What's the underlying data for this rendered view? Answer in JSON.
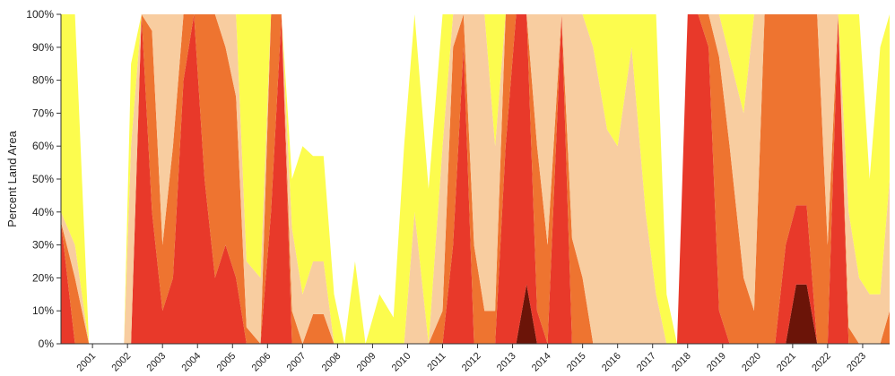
{
  "chart_data": {
    "type": "stacked_area",
    "y_label": "Percent Land Area",
    "x": [
      2000.1,
      2000.5,
      2000.9,
      2001.9,
      2002.1,
      2002.4,
      2002.7,
      2003.0,
      2003.3,
      2003.6,
      2003.9,
      2004.2,
      2004.5,
      2004.8,
      2005.1,
      2005.4,
      2005.8,
      2006.1,
      2006.4,
      2006.7,
      2007.0,
      2007.3,
      2007.6,
      2007.9,
      2008.2,
      2008.5,
      2008.8,
      2009.2,
      2009.6,
      2009.9,
      2010.2,
      2010.6,
      2011.0,
      2011.3,
      2011.6,
      2011.9,
      2012.2,
      2012.5,
      2012.8,
      2013.1,
      2013.4,
      2013.7,
      2014.0,
      2014.4,
      2014.7,
      2015.0,
      2015.3,
      2015.7,
      2016.0,
      2016.4,
      2016.8,
      2017.1,
      2017.4,
      2017.7,
      2018.0,
      2018.3,
      2018.6,
      2018.9,
      2019.2,
      2019.6,
      2019.9,
      2020.2,
      2020.5,
      2020.8,
      2021.1,
      2021.4,
      2021.7,
      2022.0,
      2022.3,
      2022.6,
      2022.9,
      2023.2,
      2023.5,
      2023.77
    ],
    "series": [
      {
        "color": "#6b1408",
        "values": [
          0,
          0,
          0,
          0,
          0,
          0,
          0,
          0,
          0,
          0,
          0,
          0,
          0,
          0,
          0,
          0,
          0,
          0,
          0,
          0,
          0,
          0,
          0,
          0,
          0,
          0,
          0,
          0,
          0,
          0,
          0,
          0,
          0,
          0,
          0,
          0,
          0,
          0,
          0,
          0,
          18,
          0,
          0,
          0,
          0,
          0,
          0,
          0,
          0,
          0,
          0,
          0,
          0,
          0,
          0,
          0,
          0,
          0,
          0,
          0,
          0,
          0,
          0,
          0,
          18,
          18,
          0,
          0,
          0,
          0,
          0,
          0,
          0,
          0
        ]
      },
      {
        "color": "#e8392a",
        "values": [
          37,
          0,
          0,
          0,
          0,
          100,
          40,
          10,
          20,
          80,
          100,
          50,
          20,
          30,
          20,
          0,
          0,
          40,
          100,
          0,
          0,
          0,
          0,
          0,
          0,
          0,
          0,
          0,
          0,
          0,
          0,
          0,
          0,
          30,
          90,
          0,
          0,
          0,
          60,
          100,
          82,
          10,
          0,
          100,
          0,
          0,
          0,
          0,
          0,
          0,
          0,
          0,
          0,
          0,
          100,
          100,
          90,
          10,
          0,
          0,
          0,
          0,
          0,
          30,
          24,
          24,
          0,
          0,
          100,
          0,
          0,
          0,
          0,
          0
        ]
      },
      {
        "color": "#ee7430",
        "values": [
          0,
          20,
          0,
          0,
          0,
          0,
          55,
          20,
          40,
          20,
          0,
          50,
          80,
          60,
          55,
          5,
          0,
          60,
          0,
          10,
          0,
          9,
          9,
          0,
          0,
          0,
          0,
          0,
          0,
          0,
          0,
          0,
          10,
          60,
          10,
          30,
          10,
          10,
          40,
          0,
          0,
          50,
          30,
          0,
          32,
          20,
          0,
          0,
          0,
          0,
          0,
          0,
          0,
          0,
          0,
          0,
          10,
          77,
          60,
          20,
          10,
          100,
          100,
          70,
          58,
          58,
          100,
          30,
          0,
          5,
          0,
          0,
          0,
          10
        ]
      },
      {
        "color": "#f8cda0",
        "values": [
          3,
          10,
          0,
          0,
          60,
          0,
          5,
          70,
          40,
          0,
          0,
          0,
          0,
          10,
          25,
          20,
          20,
          0,
          0,
          25,
          15,
          16,
          16,
          0,
          0,
          0,
          0,
          0,
          0,
          0,
          40,
          0,
          50,
          10,
          0,
          70,
          90,
          50,
          0,
          0,
          0,
          40,
          70,
          0,
          68,
          80,
          90,
          65,
          60,
          90,
          40,
          15,
          0,
          0,
          0,
          0,
          0,
          13,
          27,
          50,
          90,
          0,
          0,
          0,
          0,
          0,
          0,
          70,
          0,
          35,
          20,
          15,
          15,
          40
        ]
      },
      {
        "color": "#fcfc4e",
        "values": [
          60,
          70,
          0,
          0,
          25,
          0,
          0,
          0,
          0,
          0,
          0,
          0,
          0,
          0,
          0,
          75,
          80,
          0,
          0,
          15,
          45,
          32,
          32,
          15,
          0,
          25,
          0,
          15,
          8,
          60,
          60,
          47,
          40,
          0,
          0,
          0,
          0,
          40,
          0,
          0,
          0,
          0,
          0,
          0,
          0,
          0,
          10,
          35,
          40,
          10,
          60,
          85,
          15,
          0,
          0,
          0,
          0,
          0,
          13,
          30,
          0,
          0,
          0,
          0,
          0,
          0,
          0,
          0,
          0,
          60,
          80,
          35,
          75,
          50
        ]
      }
    ],
    "xlim": [
      2000.1,
      2023.77
    ],
    "xticks": [
      2001,
      2002,
      2003,
      2004,
      2005,
      2006,
      2007,
      2008,
      2009,
      2010,
      2011,
      2012,
      2013,
      2014,
      2015,
      2016,
      2017,
      2018,
      2019,
      2020,
      2021,
      2022,
      2023
    ],
    "ylim": [
      0,
      100
    ],
    "yticks": [
      {
        "value": 0,
        "label": "0%"
      },
      {
        "value": 10,
        "label": "10%"
      },
      {
        "value": 20,
        "label": "20%"
      },
      {
        "value": 30,
        "label": "30%"
      },
      {
        "value": 40,
        "label": "40%"
      },
      {
        "value": 50,
        "label": "50%"
      },
      {
        "value": 60,
        "label": "60%"
      },
      {
        "value": 70,
        "label": "70%"
      },
      {
        "value": 80,
        "label": "80%"
      },
      {
        "value": 90,
        "label": "90%"
      },
      {
        "value": 100,
        "label": "100%"
      }
    ]
  }
}
